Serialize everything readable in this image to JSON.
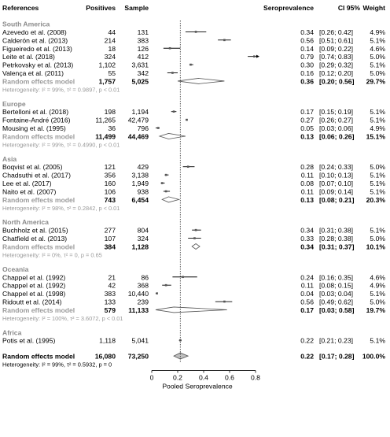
{
  "chart_data": {
    "type": "forest",
    "xlabel": "Pooled Seroprevalence",
    "xlim": [
      0,
      0.8
    ],
    "xticks": [
      "0",
      "0.2",
      "0.4",
      "0.6",
      "0.8"
    ],
    "xtick_values": [
      0,
      0.2,
      0.4,
      0.6,
      0.8
    ],
    "reference_line": 0.22,
    "headers": {
      "references": "References",
      "positives": "Positives",
      "sample": "Sample",
      "seroprevalence": "Seroprevalence",
      "ci": "CI 95%",
      "weight": "Weight"
    },
    "groups": [
      {
        "name": "South America",
        "studies": [
          {
            "ref": "Azevedo et al. (2008)",
            "positives": "44",
            "sample": "131",
            "est": 0.34,
            "lo": 0.26,
            "hi": 0.42,
            "prop": "0.34",
            "ci": "[0.26; 0.42]",
            "weight": "4.9%"
          },
          {
            "ref": "Calderón et al. (2013)",
            "positives": "214",
            "sample": "383",
            "est": 0.56,
            "lo": 0.51,
            "hi": 0.61,
            "prop": "0.56",
            "ci": "[0.51; 0.61]",
            "weight": "5.1%"
          },
          {
            "ref": "Figueiredo et al. (2013)",
            "positives": "18",
            "sample": "126",
            "est": 0.14,
            "lo": 0.09,
            "hi": 0.22,
            "prop": "0.14",
            "ci": "[0.09; 0.22]",
            "weight": "4.6%"
          },
          {
            "ref": "Leite et al. (2018)",
            "positives": "324",
            "sample": "412",
            "est": 0.79,
            "lo": 0.74,
            "hi": 0.83,
            "prop": "0.79",
            "ci": "[0.74; 0.83]",
            "weight": "5.0%"
          },
          {
            "ref": "Petrkovsky et al. (2013)",
            "positives": "1,102",
            "sample": "3,631",
            "est": 0.3,
            "lo": 0.29,
            "hi": 0.32,
            "prop": "0.30",
            "ci": "[0.29; 0.32]",
            "weight": "5.1%"
          },
          {
            "ref": "Valença et al. (2011)",
            "positives": "55",
            "sample": "342",
            "est": 0.16,
            "lo": 0.12,
            "hi": 0.2,
            "prop": "0.16",
            "ci": "[0.12; 0.20]",
            "weight": "5.0%"
          }
        ],
        "summary": {
          "label": "Random effects model",
          "positives": "1,757",
          "sample": "5,025",
          "est": 0.36,
          "lo": 0.2,
          "hi": 0.56,
          "prop": "0.36",
          "ci": "[0.20; 0.56]",
          "weight": "29.7%"
        },
        "heterogeneity": "Heterogeneity: I² = 99%, τ² = 0.9897, p < 0.01"
      },
      {
        "name": "Europe",
        "studies": [
          {
            "ref": "Bertelloni et al. (2018)",
            "positives": "198",
            "sample": "1,194",
            "est": 0.17,
            "lo": 0.15,
            "hi": 0.19,
            "prop": "0.17",
            "ci": "[0.15; 0.19]",
            "weight": "5.1%"
          },
          {
            "ref": "Fontaine-André (2016)",
            "positives": "11,265",
            "sample": "42,479",
            "est": 0.27,
            "lo": 0.26,
            "hi": 0.27,
            "prop": "0.27",
            "ci": "[0.26; 0.27]",
            "weight": "5.1%"
          },
          {
            "ref": "Mousing et al. (1995)",
            "positives": "36",
            "sample": "796",
            "est": 0.05,
            "lo": 0.03,
            "hi": 0.06,
            "prop": "0.05",
            "ci": "[0.03; 0.06]",
            "weight": "4.9%"
          }
        ],
        "summary": {
          "label": "Random effects model",
          "positives": "11,499",
          "sample": "44,469",
          "est": 0.13,
          "lo": 0.06,
          "hi": 0.26,
          "prop": "0.13",
          "ci": "[0.06; 0.26]",
          "weight": "15.1%"
        },
        "heterogeneity": "Heterogeneity: I² = 99%, τ² = 0.4990, p < 0.01"
      },
      {
        "name": "Asia",
        "studies": [
          {
            "ref": "Boqvist et al. (2005)",
            "positives": "121",
            "sample": "429",
            "est": 0.28,
            "lo": 0.24,
            "hi": 0.33,
            "prop": "0.28",
            "ci": "[0.24; 0.33]",
            "weight": "5.0%"
          },
          {
            "ref": "Chadsuthi et al. (2017)",
            "positives": "356",
            "sample": "3,138",
            "est": 0.11,
            "lo": 0.1,
            "hi": 0.13,
            "prop": "0.11",
            "ci": "[0.10; 0.13]",
            "weight": "5.1%"
          },
          {
            "ref": "Lee et al. (2017)",
            "positives": "160",
            "sample": "1,949",
            "est": 0.08,
            "lo": 0.07,
            "hi": 0.1,
            "prop": "0.08",
            "ci": "[0.07; 0.10]",
            "weight": "5.1%"
          },
          {
            "ref": "Naito et al. (2007)",
            "positives": "106",
            "sample": "938",
            "est": 0.11,
            "lo": 0.09,
            "hi": 0.14,
            "prop": "0.11",
            "ci": "[0.09; 0.14]",
            "weight": "5.1%"
          }
        ],
        "summary": {
          "label": "Random effects model",
          "positives": "743",
          "sample": "6,454",
          "est": 0.13,
          "lo": 0.08,
          "hi": 0.21,
          "prop": "0.13",
          "ci": "[0.08; 0.21]",
          "weight": "20.3%"
        },
        "heterogeneity": "Heterogeneity: I² = 98%, τ² = 0.2842, p < 0.01"
      },
      {
        "name": "North America",
        "studies": [
          {
            "ref": "Buchholz et al. (2015)",
            "positives": "277",
            "sample": "804",
            "est": 0.34,
            "lo": 0.31,
            "hi": 0.38,
            "prop": "0.34",
            "ci": "[0.31; 0.38]",
            "weight": "5.1%"
          },
          {
            "ref": "Chatfield et al. (2013)",
            "positives": "107",
            "sample": "324",
            "est": 0.33,
            "lo": 0.28,
            "hi": 0.38,
            "prop": "0.33",
            "ci": "[0.28; 0.38]",
            "weight": "5.0%"
          }
        ],
        "summary": {
          "label": "Random effects model",
          "positives": "384",
          "sample": "1,128",
          "est": 0.34,
          "lo": 0.31,
          "hi": 0.37,
          "prop": "0.34",
          "ci": "[0.31; 0.37]",
          "weight": "10.1%"
        },
        "heterogeneity": "Heterogeneity: I² = 0%, τ² = 0, p = 0.65"
      },
      {
        "name": "Oceania",
        "studies": [
          {
            "ref": "Chappel et al. (1992)",
            "positives": "21",
            "sample": "86",
            "est": 0.24,
            "lo": 0.16,
            "hi": 0.35,
            "prop": "0.24",
            "ci": "[0.16; 0.35]",
            "weight": "4.6%"
          },
          {
            "ref": "Chappel et al. (1992)",
            "positives": "42",
            "sample": "368",
            "est": 0.11,
            "lo": 0.08,
            "hi": 0.15,
            "prop": "0.11",
            "ci": "[0.08; 0.15]",
            "weight": "4.9%"
          },
          {
            "ref": "Chappel et al. (1998)",
            "positives": "383",
            "sample": "10,440",
            "est": 0.04,
            "lo": 0.03,
            "hi": 0.04,
            "prop": "0.04",
            "ci": "[0.03; 0.04]",
            "weight": "5.1%"
          },
          {
            "ref": "Ridoutt et al. (2014)",
            "positives": "133",
            "sample": "239",
            "est": 0.56,
            "lo": 0.49,
            "hi": 0.62,
            "prop": "0.56",
            "ci": "[0.49; 0.62]",
            "weight": "5.0%"
          }
        ],
        "summary": {
          "label": "Random effects model",
          "positives": "579",
          "sample": "11,133",
          "est": 0.17,
          "lo": 0.03,
          "hi": 0.58,
          "prop": "0.17",
          "ci": "[0.03; 0.58]",
          "weight": "19.7%"
        },
        "heterogeneity": "Heterogeneity: I² = 100%, τ² = 3.6072, p < 0.01"
      },
      {
        "name": "Africa",
        "studies": [
          {
            "ref": "Potis et al. (1995)",
            "positives": "1,118",
            "sample": "5,041",
            "est": 0.22,
            "lo": 0.21,
            "hi": 0.23,
            "prop": "0.22",
            "ci": "[0.21; 0.23]",
            "weight": "5.1%"
          }
        ]
      }
    ],
    "overall": {
      "label": "Random effects model",
      "positives": "16,080",
      "sample": "73,250",
      "est": 0.22,
      "lo": 0.17,
      "hi": 0.28,
      "prop": "0.22",
      "ci": "[0.17; 0.28]",
      "weight": "100.0%"
    },
    "overall_heterogeneity": "Heterogeneity: I² = 99%, τ² = 0.5932, p = 0"
  }
}
